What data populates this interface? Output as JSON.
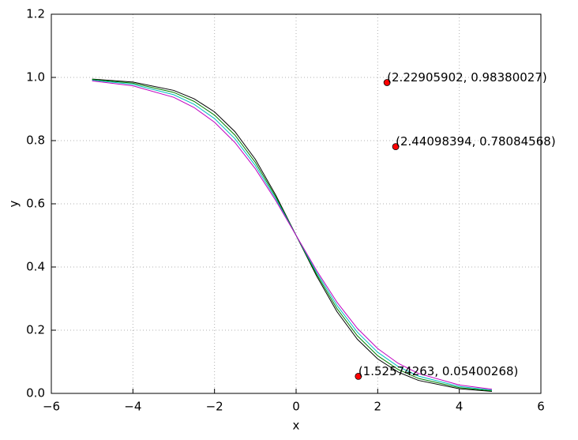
{
  "chart_data": {
    "type": "line",
    "x_label": "x",
    "y_label": "y",
    "x": [
      -5,
      -4,
      -3,
      -2.5,
      -2,
      -1.5,
      -1,
      -0.5,
      0,
      0.5,
      1,
      1.5,
      2,
      2.5,
      3,
      4,
      4.8
    ],
    "series": [
      {
        "color": "#000000",
        "values": [
          0.9948,
          0.9852,
          0.9589,
          0.9324,
          0.891,
          0.8285,
          0.741,
          0.628,
          0.5,
          0.372,
          0.259,
          0.1715,
          0.109,
          0.0676,
          0.0411,
          0.0148,
          0.0064
        ]
      },
      {
        "color": "#008000",
        "values": [
          0.9933,
          0.982,
          0.9526,
          0.9241,
          0.8808,
          0.8176,
          0.7311,
          0.6225,
          0.5,
          0.3775,
          0.2689,
          0.1824,
          0.1192,
          0.0759,
          0.0474,
          0.018,
          0.0082
        ]
      },
      {
        "color": "#00bfbf",
        "values": [
          0.9914,
          0.9781,
          0.9453,
          0.9149,
          0.8699,
          0.8061,
          0.7211,
          0.6166,
          0.5,
          0.3834,
          0.2789,
          0.1939,
          0.1301,
          0.0851,
          0.0547,
          0.0219,
          0.0104
        ]
      },
      {
        "color": "#bf00bf",
        "values": [
          0.989,
          0.9734,
          0.937,
          0.9047,
          0.8581,
          0.7941,
          0.711,
          0.6106,
          0.5,
          0.3894,
          0.289,
          0.2059,
          0.1419,
          0.0953,
          0.063,
          0.0266,
          0.0131
        ]
      }
    ],
    "points": {
      "color": "#ff0000",
      "x": [
        2.22905902,
        2.44098394,
        1.52574263
      ],
      "y": [
        0.98380027,
        0.78084568,
        0.05400268
      ],
      "labels": [
        "(2.22905902, 0.98380027)",
        "(2.44098394, 0.78084568)",
        "(1.52574263, 0.05400268)"
      ]
    },
    "xlim": [
      -6,
      6
    ],
    "xticks": [
      {
        "value": -6,
        "label": "−6"
      },
      {
        "value": -4,
        "label": "−4"
      },
      {
        "value": -2,
        "label": "−2"
      },
      0,
      2,
      4,
      6
    ],
    "ylim": [
      0,
      1.2
    ],
    "yticks": [
      {
        "value": 0,
        "label": "0.0"
      },
      0.2,
      0.4,
      0.6,
      0.8,
      {
        "value": 1,
        "label": "1.0"
      },
      1.2
    ],
    "grid": true
  }
}
